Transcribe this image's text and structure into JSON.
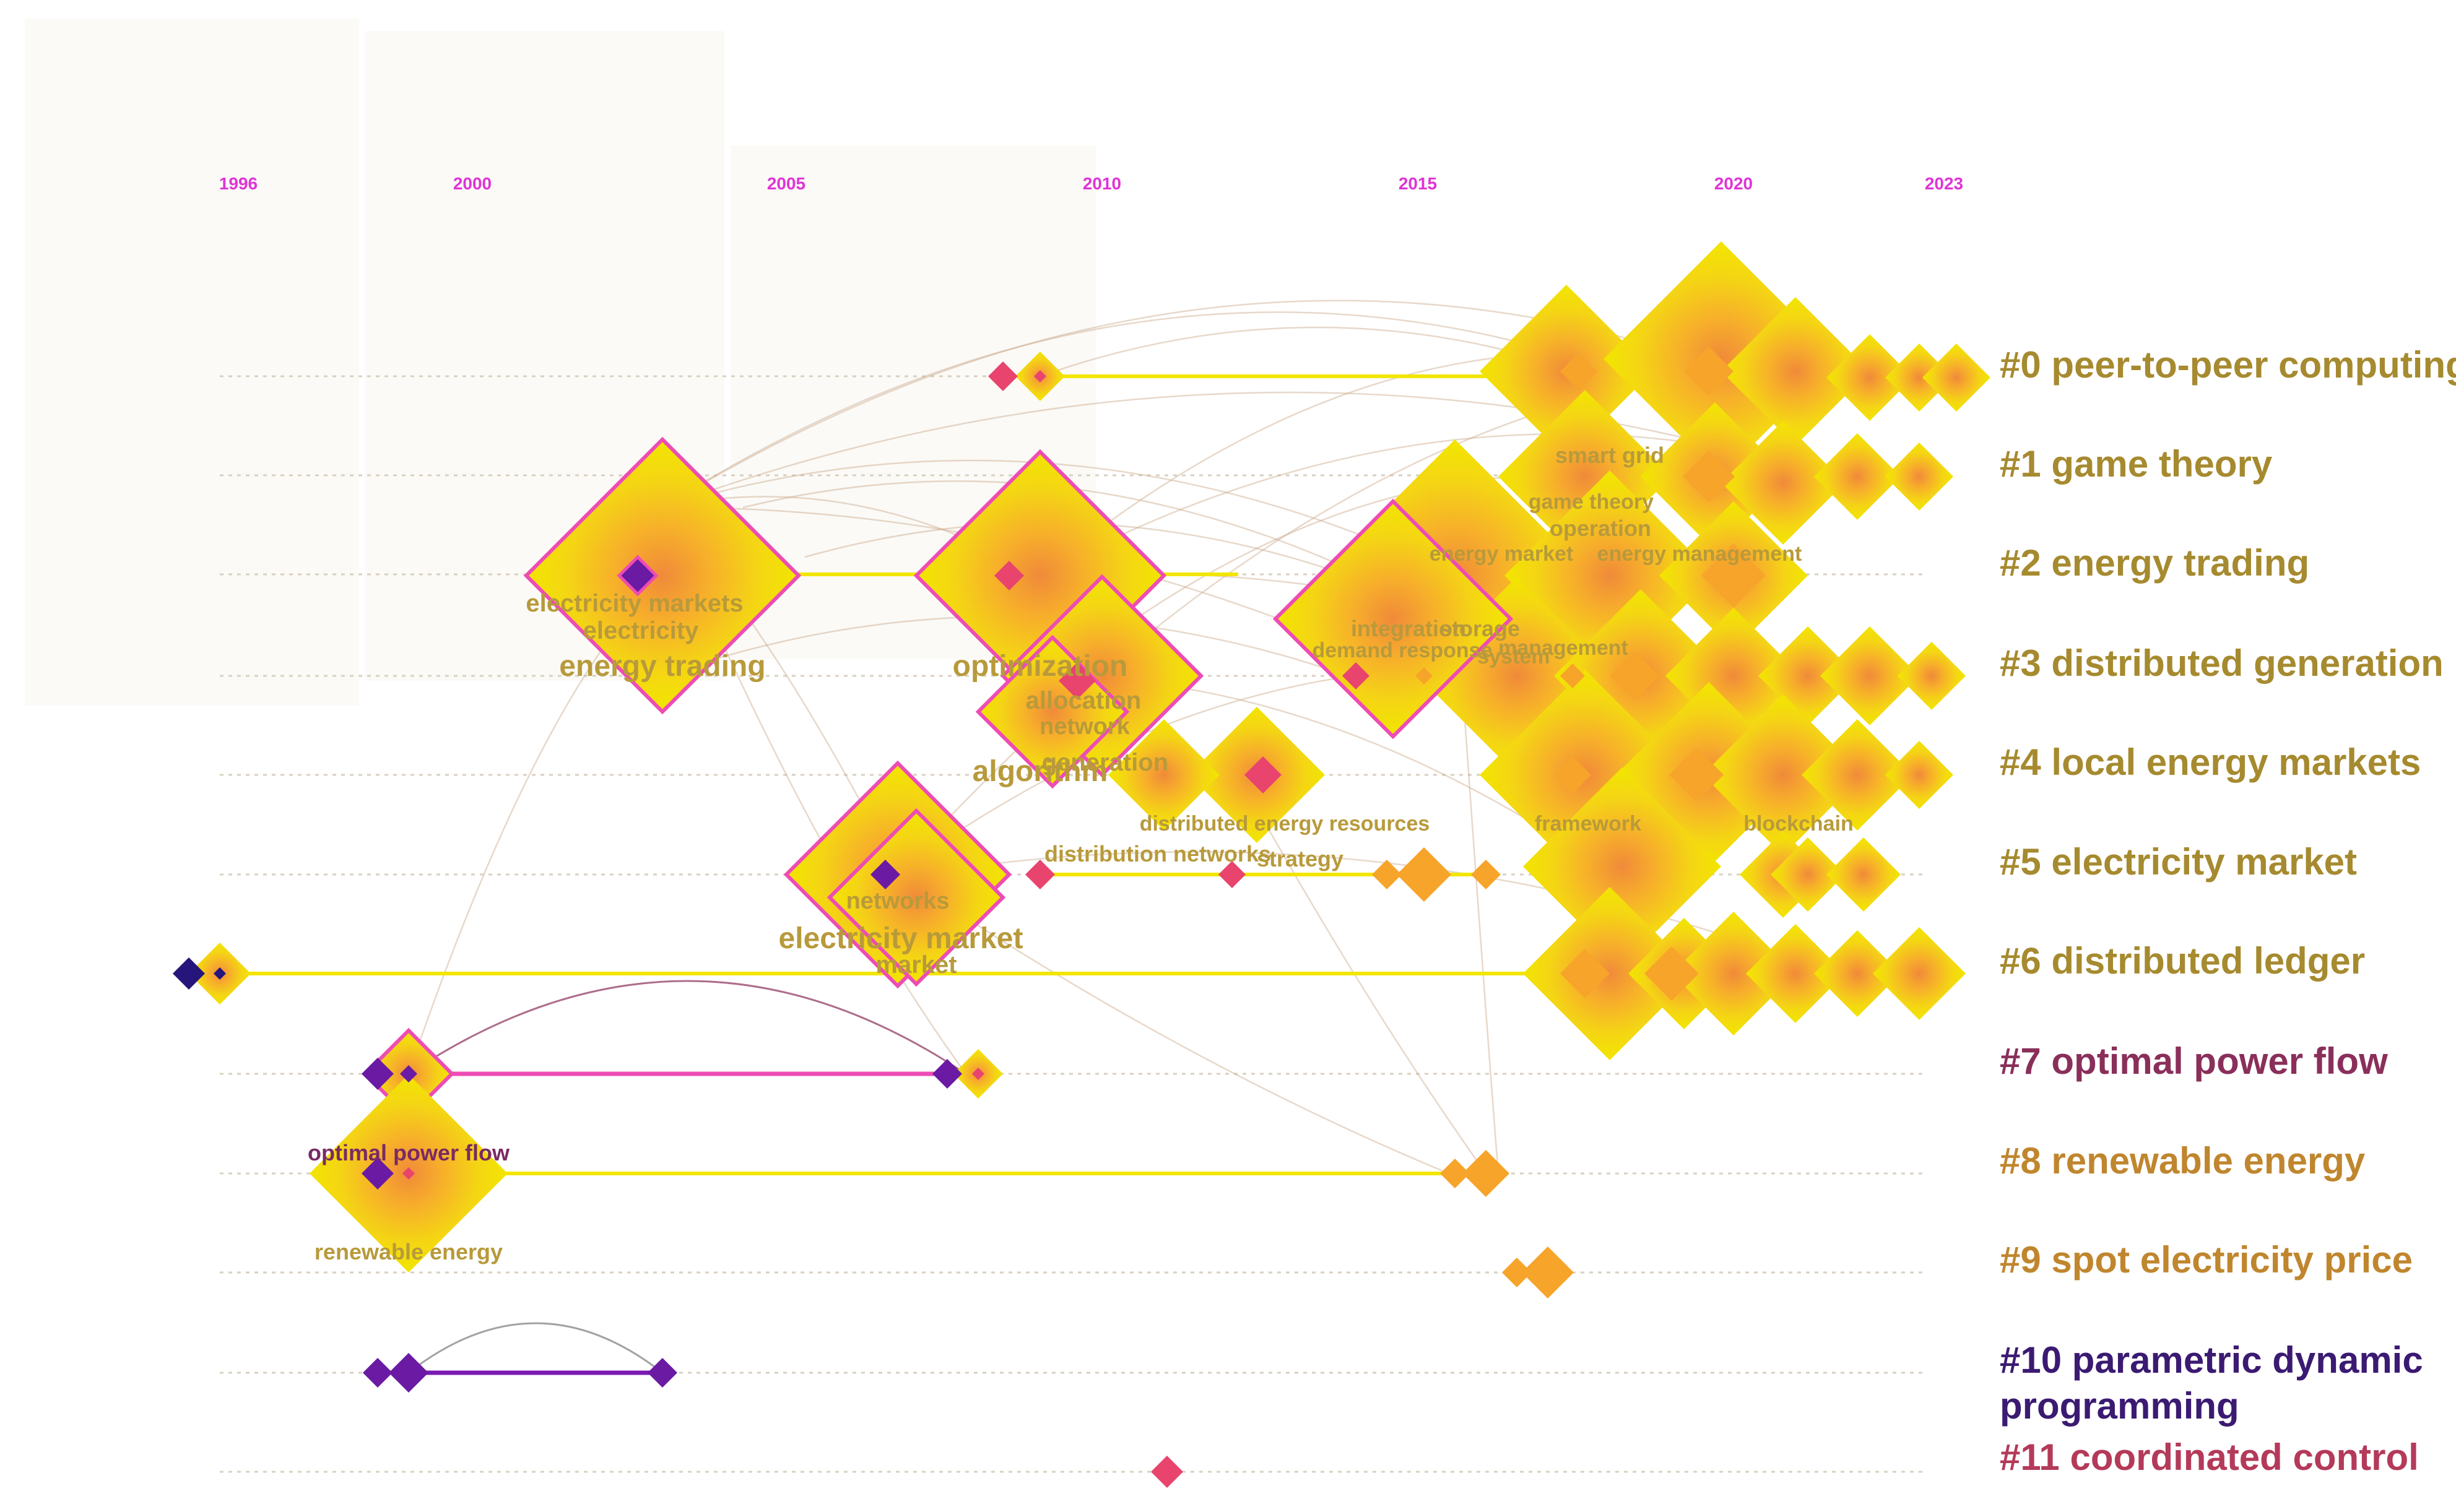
{
  "years": [
    "1996",
    "2000",
    "2005",
    "2010",
    "2015",
    "2020",
    "2023"
  ],
  "clusters": [
    {
      "label": "#0 peer-to-peer computing",
      "color": "#a68a2f"
    },
    {
      "label": "#1 game theory",
      "color": "#a68a2f"
    },
    {
      "label": "#2 energy trading",
      "color": "#a68a2f"
    },
    {
      "label": "#3 distributed generation",
      "color": "#a68a2f"
    },
    {
      "label": "#4 local energy markets",
      "color": "#a68a2f"
    },
    {
      "label": "#5 electricity market",
      "color": "#a68a2f"
    },
    {
      "label": "#6 distributed ledger",
      "color": "#a68a2f"
    },
    {
      "label": "#7 optimal power flow",
      "color": "#8a2f5a"
    },
    {
      "label": "#8 renewable energy",
      "color": "#c0862e"
    },
    {
      "label": "#9 spot electricity price",
      "color": "#c0862e"
    },
    {
      "label": "#10 parametric dynamic",
      "label2": "programming",
      "color": "#3b1a72"
    },
    {
      "label": "#11 coordinated control",
      "color": "#b43a5a"
    }
  ],
  "terms": {
    "electricity_markets": "electricity markets",
    "electricity": "electricity",
    "energy_trading": "energy trading",
    "optimization": "optimization",
    "allocation": "allocation",
    "network": "network",
    "algorithm": "algorithm",
    "generation": "generation",
    "networks": "networks",
    "electricity_market": "electricity market",
    "market": "market",
    "distribution_networks": "distribution networks",
    "strategy": "strategy",
    "distributed_energy_resources": "distributed energy resources",
    "integration": "integration",
    "storage": "storage",
    "demand_response": "demand response",
    "system": "system",
    "management": "management",
    "smart_grid": "smart grid",
    "game_theory": "game theory",
    "operation": "operation",
    "energy_market": "energy market",
    "energy_management": "energy management",
    "framework": "framework",
    "blockchain": "blockchain",
    "optimal_power_flow": "optimal power flow",
    "renewable_energy": "renewable energy"
  },
  "colors": {
    "yellow": "#f2e600",
    "orange": "#f7a42a",
    "pink": "#e8446e",
    "purple": "#6a1aa3",
    "navy": "#26157a",
    "magenta_line": "#ee4cb4",
    "year_label": "#e033d6"
  }
}
